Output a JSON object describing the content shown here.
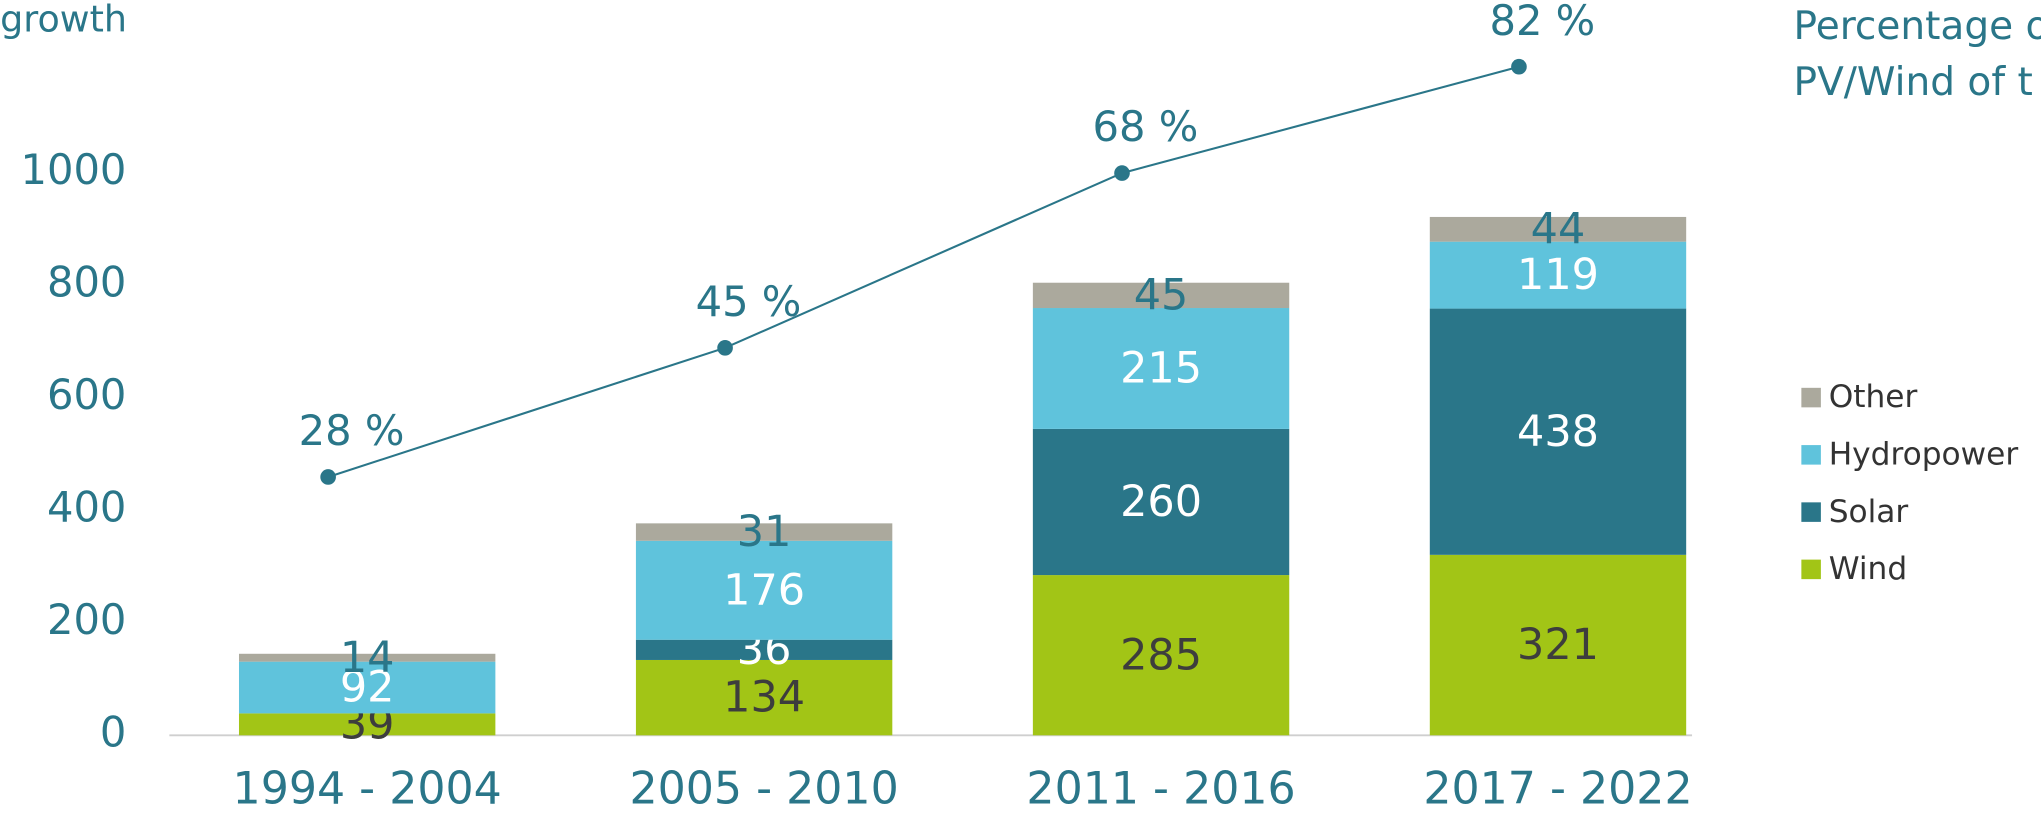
{
  "chart_data": {
    "type": "stacked_bar",
    "y_axis_label": "growth",
    "y2_axis_label": [
      "Percentage o",
      "PV/Wind of t"
    ],
    "categories": [
      "1994 - 2004",
      "2005 - 2010",
      "2011 - 2016",
      "2017 - 2022"
    ],
    "series": [
      {
        "name": "Wind",
        "color": "#a2c516",
        "label_color": "#3d3d3d",
        "values": [
          39,
          134,
          285,
          321
        ]
      },
      {
        "name": "Solar",
        "color": "#2a7689",
        "label_color": "#ffffff",
        "values": [
          0,
          36,
          260,
          438
        ]
      },
      {
        "name": "Hydropower",
        "color": "#5fc3dc",
        "label_color": "#ffffff",
        "values": [
          92,
          176,
          215,
          119
        ]
      },
      {
        "name": "Other",
        "color": "#aba99d",
        "label_color": "#2a7689",
        "values": [
          14,
          31,
          45,
          44
        ]
      }
    ],
    "line": {
      "type": "line",
      "axis": "y2",
      "color": "#2a7689",
      "values": [
        28,
        45,
        68,
        82
      ],
      "value_labels": [
        "28 %",
        "45 %",
        "68 %",
        "82 %"
      ]
    },
    "ylim": [
      0,
      1000
    ],
    "yticks": [
      0,
      200,
      400,
      600,
      800,
      1000
    ],
    "y2lim": [
      -6,
      68
    ],
    "legend": "right"
  }
}
